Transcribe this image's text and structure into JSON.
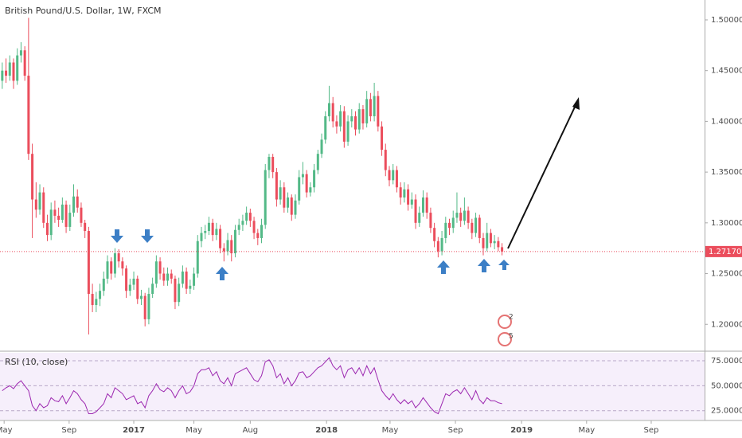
{
  "chart_data": [
    {
      "type": "candlestick",
      "title": "British Pound/U.S. Dollar, 1W, FXCM",
      "up_color": "#53b987",
      "down_color": "#eb4d5c",
      "xlim": [
        -0.6,
        186.9
      ],
      "xticks": [
        {
          "value": 0.5,
          "label": "May"
        },
        {
          "value": 17.8,
          "label": "Sep"
        },
        {
          "value": 35,
          "label": "2017"
        },
        {
          "value": 51,
          "label": "May"
        },
        {
          "value": 66,
          "label": "Aug"
        },
        {
          "value": 86.3,
          "label": "2018"
        },
        {
          "value": 103.2,
          "label": "May"
        },
        {
          "value": 120.6,
          "label": "Sep"
        },
        {
          "value": 138.2,
          "label": "2019"
        },
        {
          "value": 155.5,
          "label": "May"
        },
        {
          "value": 172.7,
          "label": "Sep"
        }
      ],
      "ylim": [
        1.1743,
        1.5196
      ],
      "yticks": [
        {
          "value": 1.2,
          "label": "1.20000"
        },
        {
          "value": 1.25,
          "label": "1.25000"
        },
        {
          "value": 1.3,
          "label": "1.30000"
        },
        {
          "value": 1.35,
          "label": "1.35000"
        },
        {
          "value": 1.4,
          "label": "1.40000"
        },
        {
          "value": 1.45,
          "label": "1.45000"
        },
        {
          "value": 1.5,
          "label": "1.50000"
        }
      ],
      "last_price": {
        "value": 1.2717,
        "label": "1.27170"
      },
      "events": [
        "2",
        "5"
      ],
      "ohlc": [
        [
          1.44,
          1.458,
          1.432,
          1.45
        ],
        [
          1.45,
          1.462,
          1.438,
          1.445
        ],
        [
          1.445,
          1.465,
          1.44,
          1.458
        ],
        [
          1.458,
          1.462,
          1.432,
          1.44
        ],
        [
          1.44,
          1.472,
          1.436,
          1.465
        ],
        [
          1.465,
          1.478,
          1.458,
          1.47
        ],
        [
          1.47,
          1.474,
          1.44,
          1.445
        ],
        [
          1.445,
          1.502,
          1.362,
          1.368
        ],
        [
          1.368,
          1.378,
          1.285,
          1.323
        ],
        [
          1.323,
          1.34,
          1.305,
          1.313
        ],
        [
          1.313,
          1.338,
          1.308,
          1.33
        ],
        [
          1.33,
          1.335,
          1.295,
          1.3
        ],
        [
          1.3,
          1.308,
          1.282,
          1.288
        ],
        [
          1.288,
          1.32,
          1.283,
          1.313
        ],
        [
          1.313,
          1.322,
          1.3,
          1.307
        ],
        [
          1.307,
          1.315,
          1.296,
          1.303
        ],
        [
          1.303,
          1.325,
          1.3,
          1.318
        ],
        [
          1.318,
          1.322,
          1.29,
          1.296
        ],
        [
          1.296,
          1.318,
          1.292,
          1.31
        ],
        [
          1.31,
          1.338,
          1.306,
          1.326
        ],
        [
          1.326,
          1.333,
          1.31,
          1.315
        ],
        [
          1.315,
          1.32,
          1.296,
          1.3
        ],
        [
          1.3,
          1.303,
          1.285,
          1.292
        ],
        [
          1.292,
          1.296,
          1.19,
          1.23
        ],
        [
          1.23,
          1.24,
          1.212,
          1.219
        ],
        [
          1.219,
          1.232,
          1.212,
          1.225
        ],
        [
          1.225,
          1.24,
          1.218,
          1.233
        ],
        [
          1.233,
          1.252,
          1.228,
          1.245
        ],
        [
          1.245,
          1.268,
          1.24,
          1.262
        ],
        [
          1.262,
          1.266,
          1.244,
          1.25
        ],
        [
          1.25,
          1.275,
          1.246,
          1.27
        ],
        [
          1.27,
          1.274,
          1.256,
          1.262
        ],
        [
          1.262,
          1.266,
          1.248,
          1.255
        ],
        [
          1.255,
          1.258,
          1.226,
          1.233
        ],
        [
          1.233,
          1.245,
          1.228,
          1.239
        ],
        [
          1.239,
          1.252,
          1.234,
          1.245
        ],
        [
          1.245,
          1.248,
          1.22,
          1.225
        ],
        [
          1.225,
          1.234,
          1.219,
          1.228
        ],
        [
          1.228,
          1.231,
          1.198,
          1.205
        ],
        [
          1.205,
          1.236,
          1.2,
          1.23
        ],
        [
          1.23,
          1.246,
          1.226,
          1.24
        ],
        [
          1.24,
          1.268,
          1.236,
          1.262
        ],
        [
          1.262,
          1.266,
          1.244,
          1.25
        ],
        [
          1.25,
          1.256,
          1.238,
          1.243
        ],
        [
          1.243,
          1.256,
          1.238,
          1.25
        ],
        [
          1.25,
          1.254,
          1.24,
          1.245
        ],
        [
          1.245,
          1.248,
          1.215,
          1.222
        ],
        [
          1.222,
          1.246,
          1.218,
          1.24
        ],
        [
          1.24,
          1.258,
          1.236,
          1.252
        ],
        [
          1.252,
          1.256,
          1.23,
          1.235
        ],
        [
          1.235,
          1.244,
          1.23,
          1.238
        ],
        [
          1.238,
          1.256,
          1.234,
          1.25
        ],
        [
          1.25,
          1.288,
          1.246,
          1.282
        ],
        [
          1.282,
          1.296,
          1.276,
          1.29
        ],
        [
          1.29,
          1.298,
          1.284,
          1.292
        ],
        [
          1.292,
          1.306,
          1.288,
          1.3
        ],
        [
          1.3,
          1.304,
          1.282,
          1.288
        ],
        [
          1.288,
          1.3,
          1.283,
          1.294
        ],
        [
          1.294,
          1.298,
          1.27,
          1.275
        ],
        [
          1.275,
          1.28,
          1.262,
          1.272
        ],
        [
          1.272,
          1.29,
          1.268,
          1.283
        ],
        [
          1.283,
          1.288,
          1.262,
          1.27
        ],
        [
          1.27,
          1.298,
          1.266,
          1.293
        ],
        [
          1.293,
          1.304,
          1.288,
          1.298
        ],
        [
          1.298,
          1.308,
          1.292,
          1.302
        ],
        [
          1.302,
          1.316,
          1.298,
          1.31
        ],
        [
          1.31,
          1.314,
          1.296,
          1.302
        ],
        [
          1.302,
          1.306,
          1.284,
          1.29
        ],
        [
          1.29,
          1.294,
          1.278,
          1.285
        ],
        [
          1.285,
          1.304,
          1.28,
          1.298
        ],
        [
          1.298,
          1.358,
          1.294,
          1.352
        ],
        [
          1.352,
          1.368,
          1.344,
          1.365
        ],
        [
          1.365,
          1.368,
          1.344,
          1.35
        ],
        [
          1.35,
          1.354,
          1.316,
          1.323
        ],
        [
          1.323,
          1.342,
          1.318,
          1.335
        ],
        [
          1.335,
          1.34,
          1.31,
          1.315
        ],
        [
          1.315,
          1.33,
          1.31,
          1.325
        ],
        [
          1.325,
          1.328,
          1.302,
          1.308
        ],
        [
          1.308,
          1.328,
          1.304,
          1.322
        ],
        [
          1.322,
          1.352,
          1.318,
          1.345
        ],
        [
          1.345,
          1.36,
          1.338,
          1.348
        ],
        [
          1.348,
          1.352,
          1.325,
          1.33
        ],
        [
          1.33,
          1.34,
          1.326,
          1.335
        ],
        [
          1.335,
          1.358,
          1.33,
          1.352
        ],
        [
          1.352,
          1.372,
          1.348,
          1.368
        ],
        [
          1.368,
          1.388,
          1.364,
          1.382
        ],
        [
          1.382,
          1.41,
          1.378,
          1.405
        ],
        [
          1.405,
          1.435,
          1.4,
          1.418
        ],
        [
          1.418,
          1.424,
          1.394,
          1.4
        ],
        [
          1.4,
          1.406,
          1.388,
          1.395
        ],
        [
          1.395,
          1.416,
          1.39,
          1.41
        ],
        [
          1.41,
          1.415,
          1.374,
          1.38
        ],
        [
          1.38,
          1.406,
          1.376,
          1.4
        ],
        [
          1.4,
          1.412,
          1.394,
          1.405
        ],
        [
          1.405,
          1.41,
          1.386,
          1.392
        ],
        [
          1.392,
          1.418,
          1.388,
          1.412
        ],
        [
          1.412,
          1.416,
          1.392,
          1.398
        ],
        [
          1.398,
          1.43,
          1.394,
          1.422
        ],
        [
          1.422,
          1.428,
          1.4,
          1.405
        ],
        [
          1.405,
          1.438,
          1.4,
          1.425
        ],
        [
          1.425,
          1.43,
          1.39,
          1.395
        ],
        [
          1.395,
          1.4,
          1.366,
          1.372
        ],
        [
          1.372,
          1.378,
          1.346,
          1.352
        ],
        [
          1.352,
          1.356,
          1.336,
          1.342
        ],
        [
          1.342,
          1.358,
          1.338,
          1.352
        ],
        [
          1.352,
          1.356,
          1.33,
          1.335
        ],
        [
          1.335,
          1.34,
          1.318,
          1.325
        ],
        [
          1.325,
          1.34,
          1.32,
          1.333
        ],
        [
          1.333,
          1.338,
          1.312,
          1.318
        ],
        [
          1.318,
          1.33,
          1.314,
          1.323
        ],
        [
          1.323,
          1.328,
          1.294,
          1.3
        ],
        [
          1.3,
          1.316,
          1.296,
          1.31
        ],
        [
          1.31,
          1.332,
          1.306,
          1.325
        ],
        [
          1.325,
          1.33,
          1.304,
          1.31
        ],
        [
          1.31,
          1.315,
          1.29,
          1.295
        ],
        [
          1.295,
          1.3,
          1.276,
          1.282
        ],
        [
          1.282,
          1.286,
          1.266,
          1.272
        ],
        [
          1.272,
          1.292,
          1.268,
          1.285
        ],
        [
          1.285,
          1.306,
          1.28,
          1.3
        ],
        [
          1.3,
          1.304,
          1.288,
          1.295
        ],
        [
          1.295,
          1.312,
          1.29,
          1.305
        ],
        [
          1.305,
          1.33,
          1.3,
          1.31
        ],
        [
          1.31,
          1.315,
          1.296,
          1.302
        ],
        [
          1.302,
          1.325,
          1.298,
          1.312
        ],
        [
          1.312,
          1.316,
          1.294,
          1.3
        ],
        [
          1.3,
          1.304,
          1.284,
          1.29
        ],
        [
          1.29,
          1.31,
          1.286,
          1.305
        ],
        [
          1.305,
          1.308,
          1.28,
          1.285
        ],
        [
          1.285,
          1.29,
          1.268,
          1.275
        ],
        [
          1.275,
          1.3,
          1.272,
          1.29
        ],
        [
          1.29,
          1.294,
          1.276,
          1.28
        ],
        [
          1.28,
          1.288,
          1.274,
          1.282
        ],
        [
          1.282,
          1.286,
          1.272,
          1.276
        ],
        [
          1.276,
          1.28,
          1.268,
          1.2717
        ]
      ]
    },
    {
      "type": "line",
      "title": "RSI (10, close)",
      "color": "#9c27b0",
      "xlim": [
        -0.6,
        186.9
      ],
      "ylim": [
        16,
        83
      ],
      "yticks": [
        {
          "value": 25,
          "label": "25.00000"
        },
        {
          "value": 50,
          "label": "50.00000"
        },
        {
          "value": 75,
          "label": "75.00000"
        }
      ],
      "values": [
        45,
        48,
        50,
        47,
        52,
        55,
        50,
        45,
        30,
        25,
        32,
        28,
        30,
        38,
        35,
        34,
        40,
        32,
        38,
        45,
        42,
        36,
        32,
        22,
        22,
        24,
        28,
        32,
        42,
        38,
        48,
        45,
        42,
        36,
        38,
        40,
        32,
        34,
        28,
        40,
        45,
        52,
        46,
        44,
        48,
        45,
        38,
        45,
        50,
        42,
        44,
        50,
        62,
        66,
        66,
        68,
        60,
        64,
        55,
        52,
        58,
        50,
        62,
        64,
        66,
        68,
        62,
        56,
        54,
        60,
        74,
        76,
        70,
        58,
        62,
        52,
        58,
        50,
        55,
        63,
        64,
        58,
        60,
        64,
        68,
        70,
        74,
        78,
        70,
        66,
        70,
        58,
        66,
        68,
        62,
        68,
        60,
        70,
        62,
        68,
        56,
        45,
        40,
        36,
        42,
        36,
        32,
        36,
        32,
        35,
        28,
        32,
        38,
        33,
        28,
        24,
        22,
        32,
        42,
        40,
        44,
        46,
        42,
        48,
        42,
        36,
        45,
        36,
        32,
        38,
        35,
        35,
        33,
        32
      ]
    }
  ]
}
